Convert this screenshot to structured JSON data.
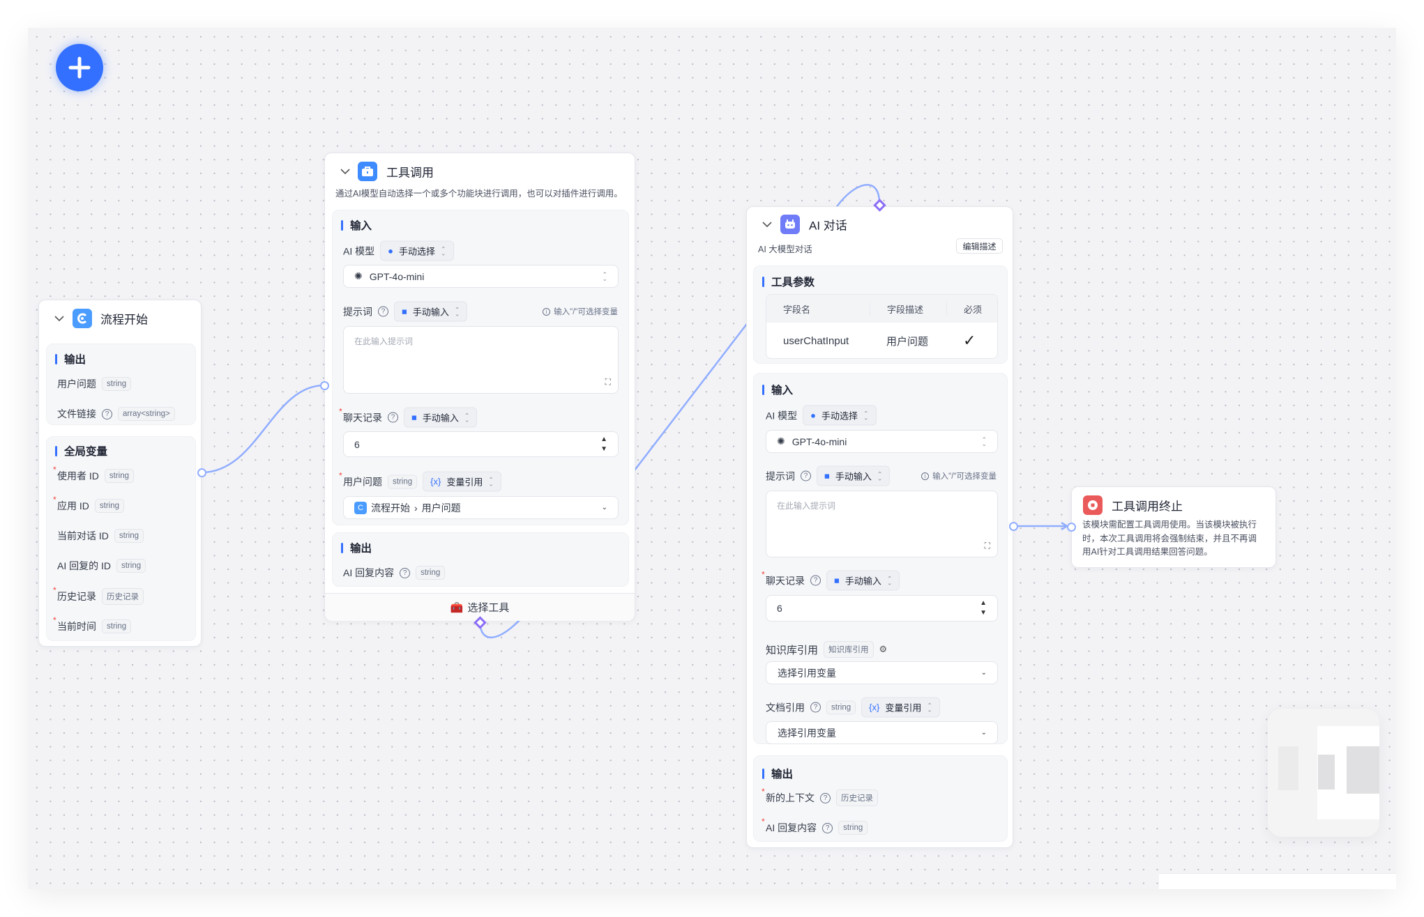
{
  "colors": {
    "accent": "#3370ff",
    "edge": "#90adff",
    "handle_diamond": "#8b6cf6",
    "stop": "#ea5a5a"
  },
  "toolbar": {
    "add_icon": "plus-icon"
  },
  "start_node": {
    "title": "流程开始",
    "output": {
      "title": "输出",
      "items": [
        {
          "label": "用户问题",
          "type": "string"
        },
        {
          "label": "文件链接",
          "type": "array<string>",
          "help": "?"
        }
      ]
    },
    "globals": {
      "title": "全局变量",
      "items": [
        {
          "label": "使用者 ID",
          "type": "string",
          "required": true
        },
        {
          "label": "应用 ID",
          "type": "string",
          "required": true
        },
        {
          "label": "当前对话 ID",
          "type": "string",
          "required": false
        },
        {
          "label": "AI 回复的 ID",
          "type": "string",
          "required": false
        },
        {
          "label": "历史记录",
          "type": "历史记录",
          "required": true
        },
        {
          "label": "当前时间",
          "type": "string",
          "required": true
        }
      ]
    }
  },
  "tool_node": {
    "title": "工具调用",
    "description": "通过AI模型自动选择一个或多个功能块进行调用，也可以对插件进行调用。",
    "input_title": "输入",
    "model_label": "AI 模型",
    "model_mode": "手动选择",
    "model_value": "GPT-4o-mini",
    "prompt_label": "提示词",
    "prompt_mode": "手动输入",
    "prompt_hint": "输入\"/\"可选择变量",
    "prompt_placeholder": "在此输入提示词",
    "history_label": "聊天记录",
    "history_mode": "手动输入",
    "history_value": "6",
    "question_label": "用户问题",
    "question_type": "string",
    "question_mode": "变量引用",
    "question_ref_node": "流程开始",
    "question_ref_field": "用户问题",
    "output_title": "输出",
    "output_label": "AI 回复内容",
    "output_type": "string",
    "footer_label": "选择工具"
  },
  "ai_node": {
    "title": "AI 对话",
    "description": "AI 大模型对话",
    "edit_button": "编辑描述",
    "params_title": "工具参数",
    "params_table": {
      "headers": [
        "字段名",
        "字段描述",
        "必须"
      ],
      "rows": [
        [
          "userChatInput",
          "用户问题",
          "✓"
        ]
      ]
    },
    "input_title": "输入",
    "model_label": "AI 模型",
    "model_mode": "手动选择",
    "model_value": "GPT-4o-mini",
    "prompt_label": "提示词",
    "prompt_mode": "手动输入",
    "prompt_hint": "输入\"/\"可选择变量",
    "prompt_placeholder": "在此输入提示词",
    "history_label": "聊天记录",
    "history_mode": "手动输入",
    "history_value": "6",
    "kb_label": "知识库引用",
    "kb_type": "知识库引用",
    "kb_placeholder": "选择引用变量",
    "doc_label": "文档引用",
    "doc_type": "string",
    "doc_mode": "变量引用",
    "doc_placeholder": "选择引用变量",
    "output_title": "输出",
    "outputs": [
      {
        "label": "新的上下文",
        "type": "历史记录"
      },
      {
        "label": "AI 回复内容",
        "type": "string"
      }
    ]
  },
  "stop_node": {
    "title": "工具调用终止",
    "description": "该模块需配置工具调用使用。当该模块被执行时，本次工具调用将会强制结束，并且不再调用AI针对工具调用结果回答问题。"
  }
}
